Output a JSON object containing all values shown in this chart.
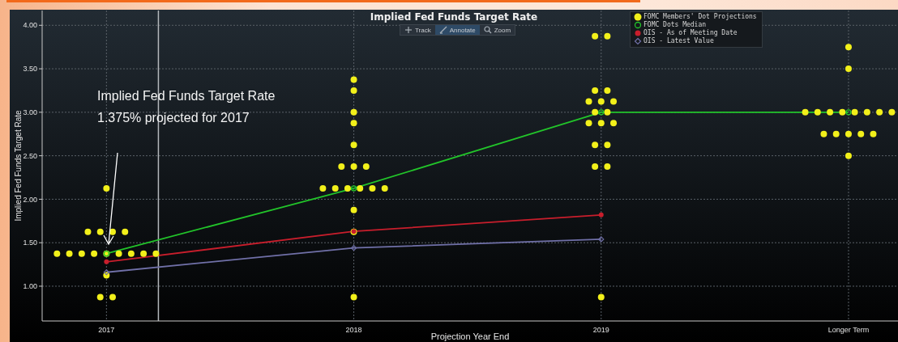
{
  "chart_data": {
    "type": "scatter",
    "title": "Implied Fed Funds Target Rate",
    "xlabel": "Projection Year End",
    "ylabel": "Implied Fed Funds Target Rate",
    "xlim": [
      2016.74,
      2020.2
    ],
    "xticks": [
      2017,
      2018,
      2019,
      {
        "value": 2020,
        "label": "Longer Term"
      }
    ],
    "ylim": [
      0.6,
      4.17
    ],
    "yticks": [
      {
        "value": 1,
        "label": "1.00"
      },
      {
        "value": 1.5,
        "label": "1.50"
      },
      {
        "value": 2,
        "label": "2.00"
      },
      {
        "value": 2.5,
        "label": "2.50"
      },
      {
        "value": 3,
        "label": "3.00"
      },
      {
        "value": 3.5,
        "label": "3.50"
      },
      {
        "value": 4,
        "label": "4.00"
      }
    ],
    "grid": true,
    "legend": "top right",
    "series": [
      {
        "name": "FOMC Members' Dot Projections",
        "marker": "circle",
        "color": "#f2f01a",
        "x": [
          2016.8,
          2016.85,
          2016.9,
          2016.95,
          2017,
          2017.05,
          2017.1,
          2017.15,
          2017.2,
          2016.925,
          2016.975,
          2017.025,
          2017.075,
          2017,
          2017,
          2016.975,
          2017.025,
          2018,
          2018,
          2018,
          2018,
          2018,
          2017.95,
          2018,
          2018.05,
          2017.875,
          2017.925,
          2017.975,
          2018.025,
          2018.075,
          2018.125,
          2018,
          2018,
          2018,
          2018.975,
          2019.025,
          2018.975,
          2019.025,
          2018.95,
          2019,
          2019.05,
          2018.975,
          2019.025,
          2018.95,
          2019,
          2019.05,
          2018.975,
          2019.025,
          2018.975,
          2019.025,
          2019,
          2020,
          2020,
          2019.825,
          2019.875,
          2019.925,
          2019.975,
          2020.025,
          2020.075,
          2020.125,
          2020.175,
          2019.9,
          2019.95,
          2020,
          2020.05,
          2020.1,
          2020
        ],
        "values": [
          1.375,
          1.375,
          1.375,
          1.375,
          1.375,
          1.375,
          1.375,
          1.375,
          1.375,
          1.625,
          1.625,
          1.625,
          1.625,
          2.125,
          1.125,
          0.875,
          0.875,
          3.375,
          3.25,
          3.0,
          2.875,
          2.625,
          2.375,
          2.375,
          2.375,
          2.125,
          2.125,
          2.125,
          2.125,
          2.125,
          2.125,
          1.875,
          1.625,
          0.875,
          3.875,
          3.875,
          3.25,
          3.25,
          3.125,
          3.125,
          3.125,
          3.0,
          3.0,
          2.875,
          2.875,
          2.875,
          2.625,
          2.625,
          2.375,
          2.375,
          0.875,
          3.75,
          3.5,
          3.0,
          3.0,
          3.0,
          3.0,
          3.0,
          3.0,
          3.0,
          3.0,
          2.75,
          2.75,
          2.75,
          2.75,
          2.75,
          2.5
        ]
      },
      {
        "name": "FOMC Dots Median",
        "type": "line",
        "marker": "circle",
        "color": "#22c42a",
        "x": [
          2017,
          2018,
          2019,
          2020
        ],
        "values": [
          1.375,
          2.125,
          3.0,
          3.0
        ]
      },
      {
        "name": "OIS - As of Meeting Date",
        "type": "line",
        "marker": "circle",
        "color": "#c81e2c",
        "x": [
          2017,
          2018,
          2019
        ],
        "values": [
          1.28,
          1.63,
          1.82
        ]
      },
      {
        "name": "OIS - Latest Value",
        "type": "line",
        "marker": "diamond",
        "color": "#7070a8",
        "x": [
          2017,
          2018,
          2019
        ],
        "values": [
          1.16,
          1.44,
          1.54
        ]
      }
    ],
    "ref_lines": [
      {
        "axis": "x",
        "value": 2017.21,
        "color": "#b4b8bc"
      }
    ],
    "annotations": [
      "Implied Fed Funds Target Rate 1.375% projected for 2017",
      "Track",
      "Annotate",
      "Zoom"
    ]
  }
}
